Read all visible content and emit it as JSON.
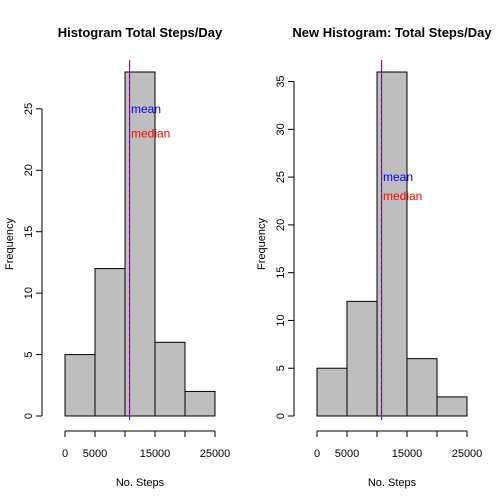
{
  "chart_data": [
    {
      "type": "bar",
      "title": "Histogram Total Steps/Day",
      "xlabel": "No. Steps",
      "ylabel": "Frequency",
      "bin_edges": [
        0,
        5000,
        10000,
        15000,
        20000,
        25000
      ],
      "values": [
        5,
        12,
        28,
        6,
        2
      ],
      "xlim": [
        0,
        25000
      ],
      "ylim": [
        0,
        28
      ],
      "x_ticks": [
        0,
        5000,
        15000,
        25000
      ],
      "x_tick_labels": [
        "0",
        "5000",
        "15000",
        "25000"
      ],
      "y_ticks": [
        0,
        5,
        10,
        15,
        20,
        25
      ],
      "y_tick_labels": [
        "0",
        "5",
        "10",
        "15",
        "20",
        "25"
      ],
      "bar_color": "#bebebe",
      "vlines": [
        {
          "x": 10766,
          "color": "#0000ff"
        },
        {
          "x": 10765,
          "color": "#ff0000"
        }
      ],
      "annotations": [
        {
          "text": "mean",
          "x": 11000,
          "y": 25,
          "color": "#0000ff"
        },
        {
          "text": "median",
          "x": 11000,
          "y": 23,
          "color": "#ff0000"
        }
      ],
      "grid": false
    },
    {
      "type": "bar",
      "title": "New Histogram: Total Steps/Day",
      "xlabel": "No. Steps",
      "ylabel": "Frequency",
      "bin_edges": [
        0,
        5000,
        10000,
        15000,
        20000,
        25000
      ],
      "values": [
        5,
        12,
        36,
        6,
        2
      ],
      "xlim": [
        0,
        25000
      ],
      "ylim": [
        0,
        36
      ],
      "x_ticks": [
        0,
        5000,
        15000,
        25000
      ],
      "x_tick_labels": [
        "0",
        "5000",
        "15000",
        "25000"
      ],
      "y_ticks": [
        0,
        5,
        10,
        15,
        20,
        25,
        30,
        35
      ],
      "y_tick_labels": [
        "0",
        "5",
        "10",
        "15",
        "20",
        "25",
        "30",
        "35"
      ],
      "bar_color": "#bebebe",
      "vlines": [
        {
          "x": 10766,
          "color": "#0000ff"
        },
        {
          "x": 10766,
          "color": "#ff0000"
        }
      ],
      "annotations": [
        {
          "text": "mean",
          "x": 11000,
          "y": 25,
          "color": "#0000ff"
        },
        {
          "text": "median",
          "x": 11000,
          "y": 23,
          "color": "#ff0000"
        }
      ],
      "grid": false
    }
  ]
}
